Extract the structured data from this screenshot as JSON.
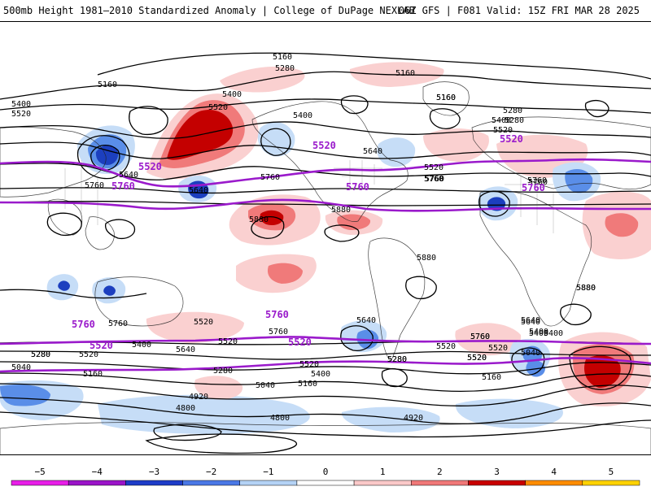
{
  "header": {
    "left": "500mb Height 1981–2010 Standardized Anomaly | College of DuPage NEXLAB",
    "right": "06Z GFS | F081 Valid: 15Z FRI MAR 28 2025"
  },
  "colorbar": {
    "ticks": [
      "−5",
      "−4",
      "−3",
      "−2",
      "−1",
      "0",
      "1",
      "2",
      "3",
      "4",
      "5"
    ],
    "colors": [
      "#e81ee8",
      "#9b14c8",
      "#1e3cc8",
      "#4a78e6",
      "#b4d2f5",
      "#ffffff",
      "#fac8c8",
      "#f07878",
      "#c80000",
      "#ff8c00",
      "#ffd200"
    ]
  },
  "map": {
    "projection": "global cylindrical",
    "palette": {
      "contour": "#000000",
      "highlight_contour": "#9a1acb",
      "neg1": "#c6ddf7",
      "neg2": "#5a8ee8",
      "neg3": "#1c3fbf",
      "pos1": "#fad0d0",
      "pos2": "#f07a7a",
      "pos3": "#c40000"
    },
    "contour_labels": [
      "5160",
      "5280",
      "5160",
      "5160",
      "5400",
      "5520",
      "5400",
      "5400",
      "5520",
      "5640",
      "5520",
      "5640",
      "5760",
      "5640",
      "5760",
      "5760",
      "5760",
      "5880",
      "5880",
      "5880",
      "5760",
      "5520",
      "5280",
      "5400",
      "5520",
      "5400",
      "5520",
      "5640",
      "5520",
      "5760",
      "5640",
      "5520",
      "5760",
      "5280",
      "5520",
      "5640",
      "5040",
      "5400",
      "5280",
      "5160",
      "5520",
      "5400",
      "5280",
      "5040",
      "5160",
      "5040",
      "5160",
      "4920",
      "4800",
      "4800",
      "4920",
      "5880",
      "5520",
      "5400",
      "5280",
      "5160",
      "5520",
      "5280",
      "5160",
      "5400",
      "5760",
      "5880",
      "5760",
      "5640",
      "5760",
      "5280"
    ],
    "highlight_labels": [
      "5520",
      "5520",
      "5760",
      "5760",
      "5760",
      "5520",
      "5760",
      "5520",
      "5760",
      "5520"
    ]
  }
}
